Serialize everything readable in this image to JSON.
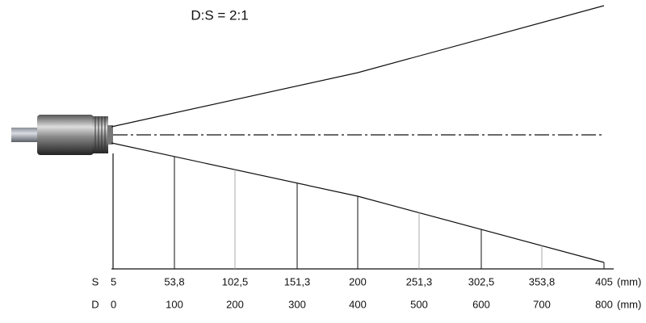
{
  "title": "D:S = 2:1",
  "rows": [
    {
      "label": "S",
      "values": [
        "5",
        "53,8",
        "102,5",
        "151,3",
        "200",
        "251,3",
        "302,5",
        "353,8",
        "405"
      ],
      "unit": "(mm)"
    },
    {
      "label": "D",
      "values": [
        "0",
        "100",
        "200",
        "300",
        "400",
        "500",
        "600",
        "700",
        "800"
      ],
      "unit": "(mm)"
    }
  ]
}
